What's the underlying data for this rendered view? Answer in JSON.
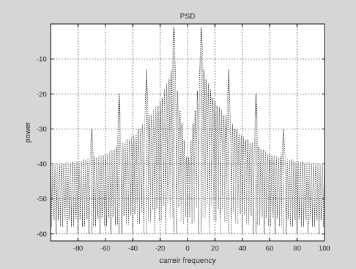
{
  "chart_data": {
    "type": "line",
    "title": "PSD",
    "xlabel": "carreir frequency",
    "ylabel": "power",
    "xlim": [
      -100,
      100
    ],
    "ylim": [
      -62,
      0
    ],
    "xticks": [
      -80,
      -60,
      -40,
      -20,
      0,
      20,
      40,
      60,
      80,
      100
    ],
    "yticks": [
      -10,
      -20,
      -30,
      -40,
      -50,
      -60
    ],
    "grid": true,
    "series": [
      {
        "style": "dotted",
        "peaks": [
          {
            "x": -70,
            "y": -30
          },
          {
            "x": -50,
            "y": -20
          },
          {
            "x": -30,
            "y": -13
          },
          {
            "x": -10,
            "y": -1
          },
          {
            "x": 10,
            "y": -1
          },
          {
            "x": 30,
            "y": -13
          },
          {
            "x": 50,
            "y": -20
          },
          {
            "x": 70,
            "y": -30
          }
        ],
        "envelope": [
          {
            "x": -100,
            "y": -40
          },
          {
            "x": -80,
            "y": -39
          },
          {
            "x": -60,
            "y": -37
          },
          {
            "x": -40,
            "y": -32
          },
          {
            "x": -20,
            "y": -22
          },
          {
            "x": -10,
            "y": -11
          },
          {
            "x": 0,
            "y": -40
          },
          {
            "x": 10,
            "y": -11
          },
          {
            "x": 20,
            "y": -22
          },
          {
            "x": 40,
            "y": -32
          },
          {
            "x": 60,
            "y": -37
          },
          {
            "x": 80,
            "y": -39
          },
          {
            "x": 100,
            "y": -40
          }
        ],
        "floor": -60
      }
    ]
  }
}
